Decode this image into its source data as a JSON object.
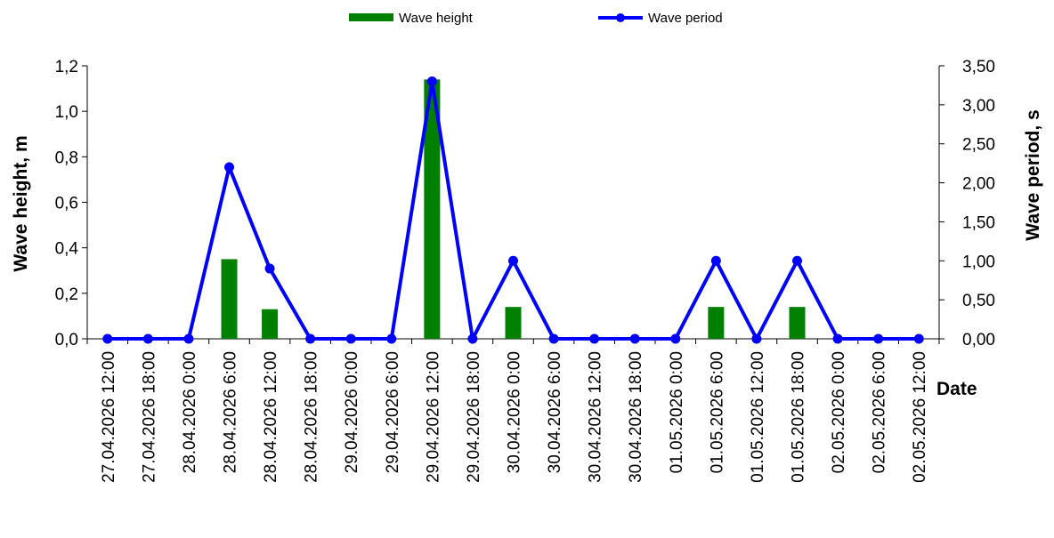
{
  "chart_data": {
    "type": "bar",
    "categories": [
      "27.04.2026 12:00",
      "27.04.2026 18:00",
      "28.04.2026 0:00",
      "28.04.2026 6:00",
      "28.04.2026 12:00",
      "28.04.2026 18:00",
      "29.04.2026 0:00",
      "29.04.2026 6:00",
      "29.04.2026 12:00",
      "29.04.2026 18:00",
      "30.04.2026 0:00",
      "30.04.2026 6:00",
      "30.04.2026 12:00",
      "30.04.2026 18:00",
      "01.05.2026 0:00",
      "01.05.2026 6:00",
      "01.05.2026 12:00",
      "01.05.2026 18:00",
      "02.05.2026 0:00",
      "02.05.2026 6:00",
      "02.05.2026 12:00"
    ],
    "series": [
      {
        "name": "Wave height",
        "type": "bar",
        "axis": "left",
        "color": "#008000",
        "values": [
          0,
          0,
          0,
          0.35,
          0.13,
          0,
          0,
          0,
          1.14,
          0,
          0.14,
          0,
          0,
          0,
          0,
          0.14,
          0,
          0.14,
          0,
          0,
          0
        ]
      },
      {
        "name": "Wave period",
        "type": "line",
        "axis": "right",
        "color": "#0000ff",
        "values": [
          0,
          0,
          0,
          2.2,
          0.9,
          0,
          0,
          0,
          3.3,
          0,
          1.0,
          0,
          0,
          0,
          0,
          1.0,
          0,
          1.0,
          0,
          0,
          0
        ]
      }
    ],
    "xlabel": "Date",
    "ylabel": "Wave height, m",
    "y2label": "Wave period, s",
    "ylim": [
      0,
      1.2
    ],
    "y2lim": [
      0,
      3.5
    ],
    "yticks": [
      "0,0",
      "0,2",
      "0,4",
      "0,6",
      "0,8",
      "1,0",
      "1,2"
    ],
    "y2ticks": [
      "0,00",
      "0,50",
      "1,00",
      "1,50",
      "2,00",
      "2,50",
      "3,00",
      "3,50"
    ],
    "grid": false,
    "legend": "top-center"
  }
}
